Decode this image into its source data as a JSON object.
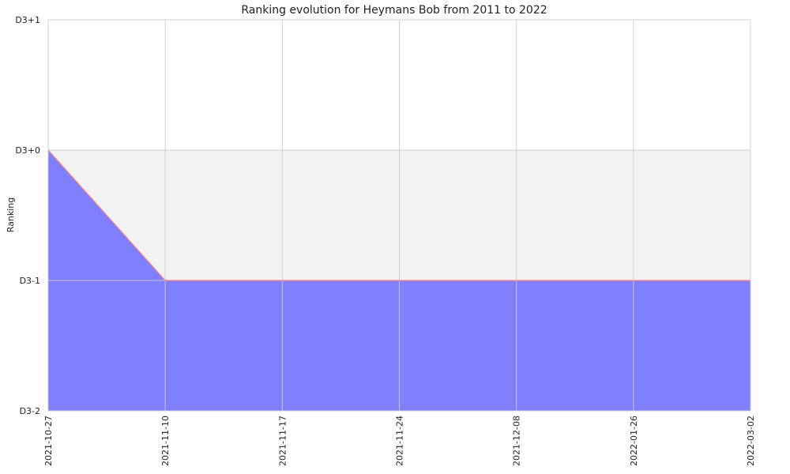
{
  "chart_data": {
    "type": "area",
    "title": "Ranking evolution for Heymans Bob from 2011 to 2022",
    "xlabel": "",
    "ylabel": "Ranking",
    "y_ticks": [
      "D3-2",
      "D3-1",
      "D3+0",
      "D3+1"
    ],
    "ylim": [
      0,
      3
    ],
    "x": [
      "2021-10-27",
      "2021-11-10",
      "2021-11-17",
      "2021-11-24",
      "2021-12-08",
      "2022-01-26",
      "2022-03-02"
    ],
    "series": [
      {
        "values": [
          2,
          1,
          1,
          1,
          1,
          1,
          1
        ]
      }
    ],
    "grid": true,
    "legend": "none",
    "colors": {
      "fill": "#8080ff",
      "line": "#ff8080",
      "band": "#f2f2f2",
      "grid": "#cccccc"
    }
  }
}
